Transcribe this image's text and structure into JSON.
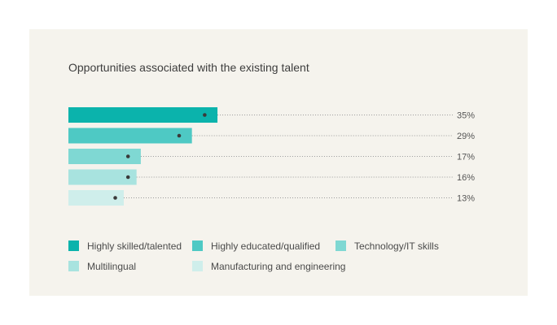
{
  "title": "Opportunities associated with the existing talent",
  "chart_data": {
    "type": "bar",
    "orientation": "horizontal",
    "title": "Opportunities associated with the existing talent",
    "categories": [
      "Highly skilled/talented",
      "Highly educated/qualified",
      "Technology/IT skills",
      "Multilingual",
      "Manufacturing and engineering"
    ],
    "values": [
      35,
      29,
      17,
      16,
      13
    ],
    "value_labels": [
      "35%",
      "29%",
      "17%",
      "16%",
      "13%"
    ],
    "marker_values": [
      32,
      26,
      14,
      14,
      11
    ],
    "colors": [
      "#0bb3ac",
      "#4ec9c4",
      "#7fd8d3",
      "#a8e3df",
      "#cfeeeb"
    ],
    "xlim": [
      0,
      100
    ],
    "legend_position": "bottom",
    "grid": false
  }
}
